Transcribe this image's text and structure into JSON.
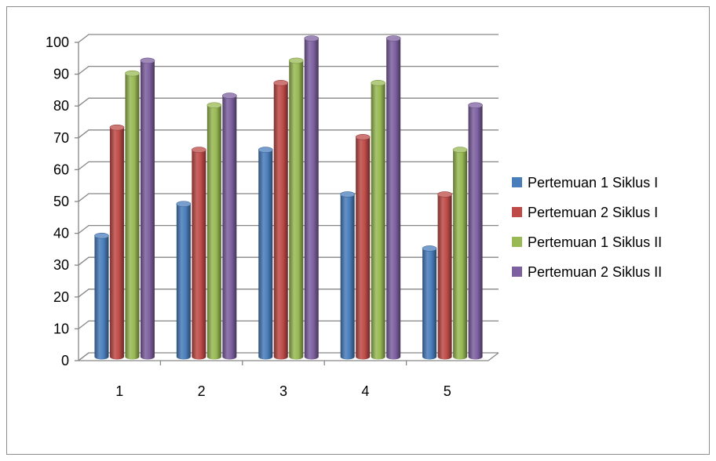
{
  "chart_data": {
    "type": "bar",
    "title": "",
    "xlabel": "",
    "ylabel": "",
    "categories": [
      "1",
      "2",
      "3",
      "4",
      "5"
    ],
    "ylim": [
      0,
      100
    ],
    "yticks": [
      "0",
      "10",
      "20",
      "30",
      "40",
      "50",
      "60",
      "70",
      "80",
      "90",
      "100"
    ],
    "grid": true,
    "legend_position": "right",
    "style": "3d-cylinder",
    "series": [
      {
        "name": "Pertemuan 1 Siklus I",
        "color": "#4a7ebb",
        "values": [
          38,
          48,
          65,
          51,
          34
        ]
      },
      {
        "name": "Pertemuan 2 Siklus I",
        "color": "#be4b48",
        "values": [
          72,
          65,
          86,
          69,
          51
        ]
      },
      {
        "name": "Pertemuan 1 Siklus II",
        "color": "#98b954",
        "values": [
          89,
          79,
          93,
          86,
          65
        ]
      },
      {
        "name": "Pertemuan 2 Siklus II",
        "color": "#7d60a0",
        "values": [
          93,
          82,
          100,
          100,
          79
        ]
      }
    ]
  }
}
